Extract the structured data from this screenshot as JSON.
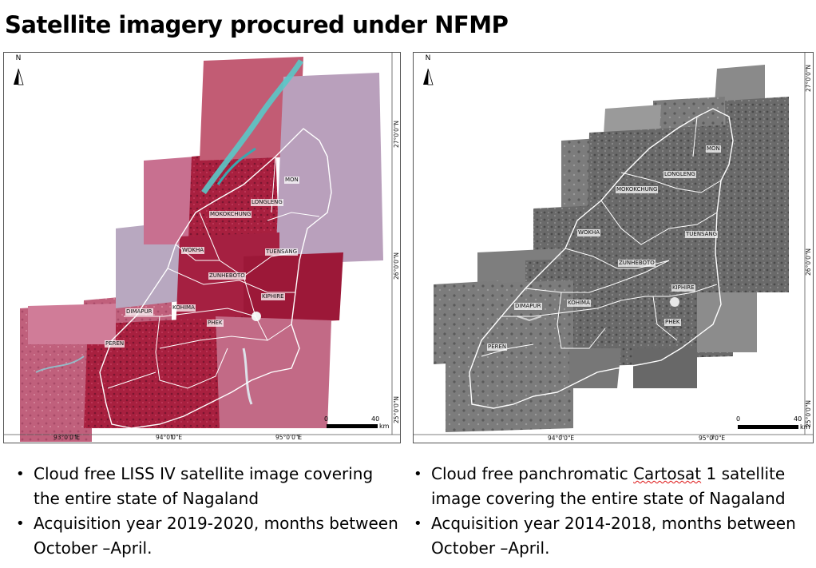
{
  "title": "Satellite imagery procured under NFMP",
  "left_map": {
    "north_label": "N",
    "x_ticks": [
      "93°0'0\"E",
      "94°0'0\"E",
      "95°0'0\"E"
    ],
    "y_ticks": [
      "27°0'0\"N",
      "26°0'0\"N",
      "25°0'0\"N"
    ],
    "districts": [
      "MON",
      "LONGLENG",
      "MOKOKCHUNG",
      "WOKHA",
      "TUENSANG",
      "ZUNHEBOTO",
      "DIMAPUR",
      "KOHIMA",
      "KIPHIRE",
      "PHEK",
      "PEREN"
    ],
    "scale": {
      "zero": "0",
      "max": "40",
      "unit": "km"
    }
  },
  "right_map": {
    "north_label": "N",
    "x_ticks": [
      "94°0'0\"E",
      "95°0'0\"E"
    ],
    "y_ticks": [
      "27°0'0\"N",
      "26°0'0\"N",
      "25°0'0\"N"
    ],
    "districts": [
      "MON",
      "LONGLENG",
      "MOKOKCHUNG",
      "WOKHA",
      "TUENSANG",
      "ZUNHEBOTO",
      "DIMAPUR",
      "KOHIMA",
      "KIPHIRE",
      "PHEK",
      "PEREN"
    ],
    "scale": {
      "zero": "0",
      "max": "40",
      "unit": "km"
    }
  },
  "bullets_left": [
    "Cloud free LISS IV satellite image covering the entire state of Nagaland",
    " Acquisition year 2019-2020, months between October –April."
  ],
  "bullets_right": {
    "item1_pre": "Cloud free panchromatic ",
    "item1_word": "Cartosat",
    "item1_post": " 1 satellite image covering the entire state of Nagaland",
    "item2": "Acquisition year 2014-2018, months between October –April."
  },
  "colors": {
    "fcc_red": "#b8284a",
    "fcc_pink": "#c8607a",
    "fcc_cyan": "#5ac8c8",
    "pan_gray": "#6b6b6b"
  }
}
